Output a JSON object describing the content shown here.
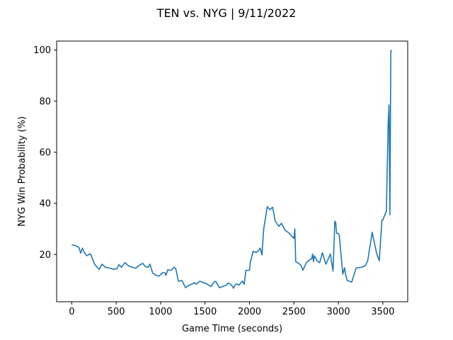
{
  "chart_data": {
    "type": "line",
    "title": "TEN vs. NYG | 9/11/2022",
    "xlabel": "Game Time (seconds)",
    "ylabel": "NYG Win Probability (%)",
    "xlim": [
      -170,
      3780
    ],
    "ylim": [
      1.5,
      103.5
    ],
    "xticks": [
      0,
      500,
      1000,
      1500,
      2000,
      2500,
      3000,
      3500
    ],
    "yticks": [
      20,
      40,
      60,
      80,
      100
    ],
    "grid": false,
    "line_color": "#1f77b4",
    "series": [
      {
        "x": [
          0,
          40,
          80,
          100,
          120,
          140,
          170,
          210,
          260,
          310,
          340,
          380,
          420,
          480,
          510,
          530,
          560,
          600,
          640,
          680,
          720,
          760,
          800,
          830,
          860,
          880,
          910,
          940,
          980,
          1020,
          1050,
          1060,
          1080,
          1120,
          1150,
          1170,
          1200,
          1240,
          1280,
          1320,
          1360,
          1380,
          1400,
          1440,
          1480,
          1520,
          1540,
          1570,
          1600,
          1620,
          1660,
          1700,
          1740,
          1760,
          1780,
          1800,
          1820,
          1840,
          1860,
          1880,
          1920,
          1940,
          1960,
          2000,
          2010,
          2040,
          2080,
          2100,
          2120,
          2140,
          2160,
          2200,
          2230,
          2260,
          2290,
          2330,
          2360,
          2400,
          2440,
          2480,
          2500,
          2510,
          2520,
          2540,
          2580,
          2600,
          2640,
          2680,
          2700,
          2710,
          2720,
          2730,
          2760,
          2790,
          2820,
          2860,
          2880,
          2910,
          2940,
          2960,
          2970,
          2980,
          3000,
          3010,
          3030,
          3050,
          3070,
          3080,
          3100,
          3150,
          3200,
          3260,
          3300,
          3330,
          3380,
          3430,
          3460,
          3490,
          3500,
          3540,
          3560,
          3570,
          3580,
          3590,
          3600
        ],
        "y": [
          23.8,
          23.5,
          22.8,
          20.5,
          22.5,
          20.8,
          19.5,
          20.3,
          16,
          14.2,
          16.2,
          15,
          14.7,
          14.2,
          14.5,
          16,
          15,
          16.8,
          15.5,
          15,
          14.6,
          15.8,
          16.5,
          15.2,
          15,
          16.2,
          12.8,
          12,
          11.5,
          12.8,
          12.8,
          11.8,
          14,
          13.8,
          15,
          14.5,
          9.5,
          9.8,
          7,
          8,
          8.5,
          9,
          8.4,
          9.5,
          9,
          8.5,
          8,
          7.5,
          9.2,
          9.5,
          7,
          7.5,
          8,
          8.8,
          8.5,
          8,
          6.8,
          8.2,
          8.5,
          8,
          9.6,
          8.3,
          13.8,
          13.8,
          17,
          21.2,
          20.8,
          21.5,
          22.5,
          19.8,
          30,
          38.7,
          37.5,
          38.5,
          33,
          31,
          32.2,
          29.5,
          28.5,
          27,
          26.3,
          30,
          17.2,
          16.8,
          15.8,
          13.8,
          16.8,
          18,
          18.3,
          20.2,
          17.2,
          19.5,
          17.5,
          16.8,
          20.7,
          16.2,
          17.8,
          20.2,
          13.5,
          33,
          32.5,
          28.3,
          28.2,
          27.5,
          20,
          12.3,
          14.8,
          12.2,
          9.8,
          9.2,
          14.7,
          15,
          15.5,
          17.5,
          28.7,
          20.5,
          17.5,
          33.5,
          33.5,
          37,
          71,
          78.5,
          35.5,
          99.5,
          100
        ]
      }
    ]
  }
}
